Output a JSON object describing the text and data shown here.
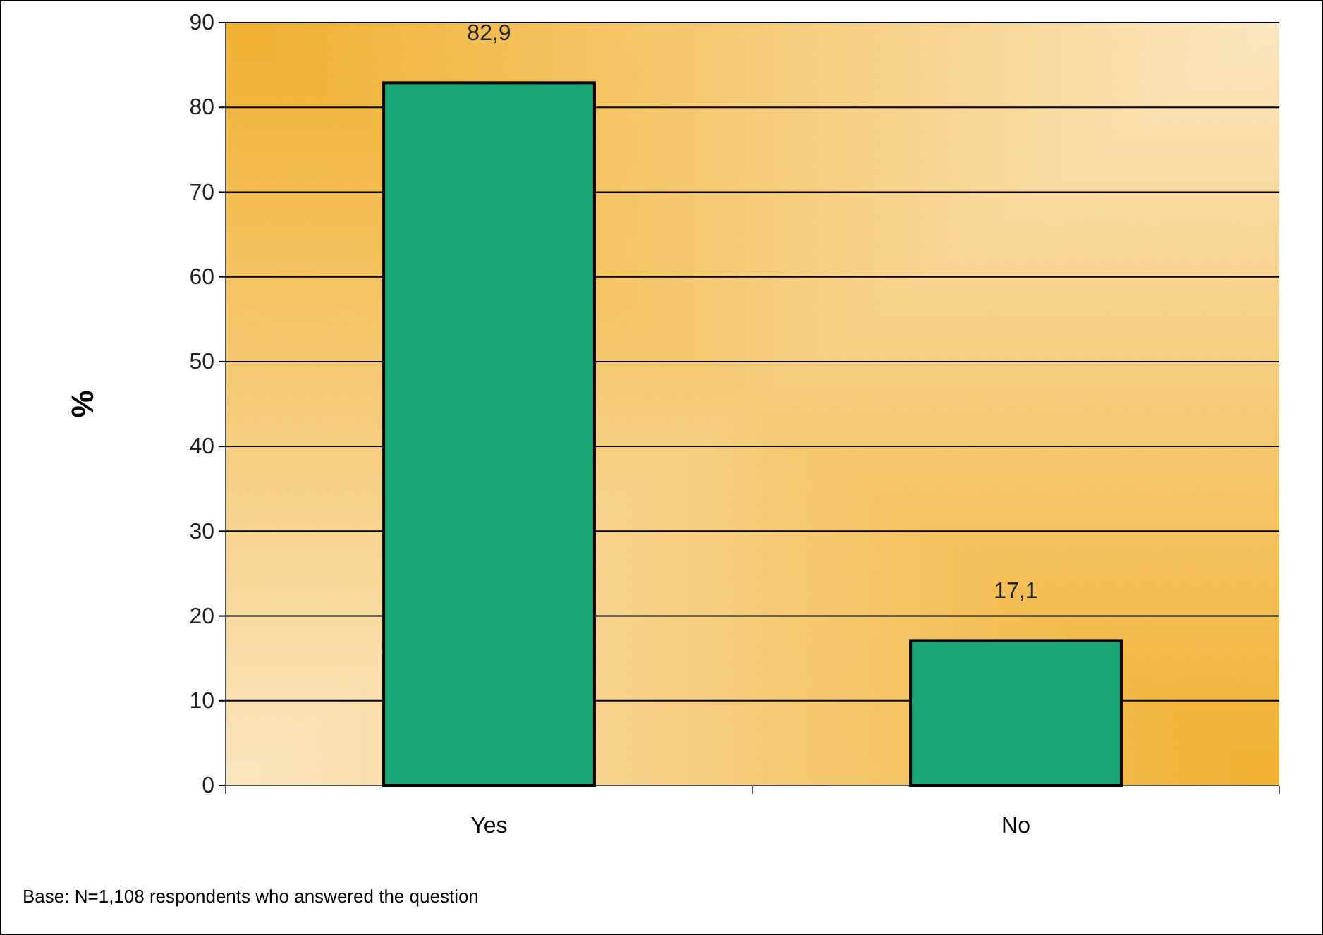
{
  "chart_data": {
    "type": "bar",
    "ylabel": "%",
    "categories": [
      "Yes",
      "No"
    ],
    "values": [
      82.9,
      17.1
    ],
    "value_labels": [
      "82,9",
      "17,1"
    ],
    "color": "#1aa575",
    "ylim": [
      0,
      90
    ],
    "yticks": [
      0,
      10,
      20,
      30,
      40,
      50,
      60,
      70,
      80,
      90
    ],
    "grid": "y",
    "annotations": [
      "Base:  N=1,108 respondents who answered the question"
    ]
  }
}
